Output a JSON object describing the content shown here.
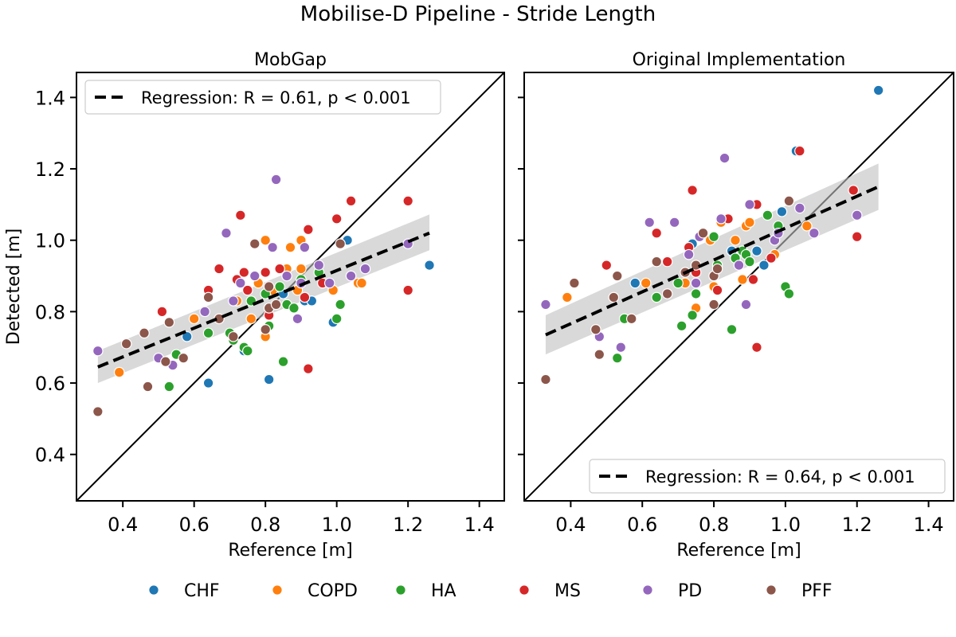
{
  "suptitle": "Mobilise-D Pipeline - Stride Length",
  "colors": {
    "CHF": "#1f77b4",
    "COPD": "#ff7f0e",
    "HA": "#2ca02c",
    "MS": "#d62728",
    "PD": "#9467bd",
    "PFF": "#8c564b",
    "regression": "#000000",
    "ci_band": "#bfbfbf"
  },
  "legend": {
    "items": [
      "CHF",
      "COPD",
      "HA",
      "MS",
      "PD",
      "PFF"
    ]
  },
  "chart_data": [
    {
      "type": "scatter",
      "title": "MobGap",
      "xlabel": "Reference [m]",
      "ylabel": "Detected [m]",
      "xlim": [
        0.27,
        1.47
      ],
      "ylim": [
        0.27,
        1.47
      ],
      "xticks": [
        0.4,
        0.6,
        0.8,
        1.0,
        1.2,
        1.4
      ],
      "yticks": [
        0.4,
        0.6,
        0.8,
        1.0,
        1.2,
        1.4
      ],
      "xtick_labels": [
        "0.4",
        "0.6",
        "0.8",
        "1.0",
        "1.2",
        "1.4"
      ],
      "ytick_labels": [
        "0.4",
        "0.6",
        "0.8",
        "1.0",
        "1.2",
        "1.4"
      ],
      "identity_line": true,
      "regression": {
        "label": "Regression: R = 0.61, p < 0.001",
        "x": [
          0.33,
          1.26
        ],
        "y": [
          0.645,
          1.02
        ],
        "ci_lower": [
          0.6,
          0.972
        ],
        "ci_upper": [
          0.69,
          1.072
        ]
      },
      "legend_position": "upper-left",
      "series": [
        {
          "name": "CHF",
          "x": [
            0.58,
            0.64,
            0.74,
            0.81,
            0.85,
            0.91,
            0.93,
            0.99,
            1.03,
            1.26
          ],
          "y": [
            0.73,
            0.6,
            0.69,
            0.61,
            0.85,
            0.83,
            0.83,
            0.77,
            1.0,
            0.93
          ]
        },
        {
          "name": "COPD",
          "x": [
            0.39,
            0.6,
            0.72,
            0.75,
            0.76,
            0.78,
            0.8,
            0.8,
            0.82,
            0.86,
            0.87,
            0.89,
            0.9,
            0.9,
            0.99,
            1.06,
            1.07
          ],
          "y": [
            0.63,
            0.78,
            0.83,
            0.69,
            0.78,
            0.88,
            0.73,
            1.0,
            0.86,
            0.92,
            0.98,
            0.86,
            0.92,
            1.0,
            0.86,
            0.88,
            0.88
          ]
        },
        {
          "name": "HA",
          "x": [
            0.53,
            0.55,
            0.64,
            0.7,
            0.71,
            0.74,
            0.75,
            0.76,
            0.8,
            0.81,
            0.84,
            0.85,
            0.86,
            0.88,
            0.9,
            0.95,
            1.0,
            1.01
          ],
          "y": [
            0.59,
            0.68,
            0.74,
            0.74,
            0.72,
            0.7,
            0.69,
            0.83,
            0.85,
            0.76,
            0.87,
            0.66,
            0.82,
            0.81,
            0.89,
            0.91,
            0.78,
            0.82
          ]
        },
        {
          "name": "MS",
          "x": [
            0.51,
            0.64,
            0.67,
            0.72,
            0.73,
            0.74,
            0.75,
            0.8,
            0.81,
            0.84,
            0.91,
            0.92,
            0.92,
            0.96,
            1.0,
            1.04,
            1.2,
            1.2
          ],
          "y": [
            0.8,
            0.86,
            0.92,
            0.89,
            1.07,
            0.91,
            0.86,
            0.91,
            0.79,
            0.92,
            0.84,
            0.64,
            1.03,
            0.88,
            1.06,
            1.11,
            1.11,
            0.86
          ]
        },
        {
          "name": "PD",
          "x": [
            0.33,
            0.5,
            0.54,
            0.63,
            0.69,
            0.71,
            0.73,
            0.77,
            0.82,
            0.83,
            0.86,
            0.89,
            0.9,
            0.91,
            0.95,
            0.98,
            1.04,
            1.08,
            1.2
          ],
          "y": [
            0.69,
            0.67,
            0.65,
            0.8,
            1.02,
            0.83,
            0.88,
            0.9,
            0.98,
            1.17,
            0.9,
            0.78,
            0.88,
            0.98,
            0.93,
            0.88,
            0.9,
            0.92,
            0.99
          ]
        },
        {
          "name": "PFF",
          "x": [
            0.33,
            0.41,
            0.46,
            0.47,
            0.52,
            0.53,
            0.57,
            0.64,
            0.67,
            0.71,
            0.77,
            0.8,
            0.81,
            0.81,
            0.83,
            1.01
          ],
          "y": [
            0.52,
            0.71,
            0.74,
            0.59,
            0.66,
            0.77,
            0.67,
            0.84,
            0.78,
            0.73,
            0.99,
            0.75,
            0.81,
            0.87,
            0.82,
            0.99
          ]
        }
      ]
    },
    {
      "type": "scatter",
      "title": "Original Implementation",
      "xlabel": "Reference [m]",
      "ylabel": "",
      "xlim": [
        0.27,
        1.47
      ],
      "ylim": [
        0.27,
        1.47
      ],
      "xticks": [
        0.4,
        0.6,
        0.8,
        1.0,
        1.2,
        1.4
      ],
      "yticks": [
        0.4,
        0.6,
        0.8,
        1.0,
        1.2,
        1.4
      ],
      "xtick_labels": [
        "0.4",
        "0.6",
        "0.8",
        "1.0",
        "1.2",
        "1.4"
      ],
      "ytick_labels": [],
      "identity_line": true,
      "regression": {
        "label": "Regression: R = 0.64, p < 0.001",
        "x": [
          0.33,
          1.26
        ],
        "y": [
          0.735,
          1.15
        ],
        "ci_lower": [
          0.68,
          1.085
        ],
        "ci_upper": [
          0.79,
          1.215
        ]
      },
      "legend_position": "lower-right",
      "series": [
        {
          "name": "CHF",
          "x": [
            0.58,
            0.64,
            0.74,
            0.85,
            0.92,
            0.94,
            0.99,
            1.03,
            1.26
          ],
          "y": [
            0.88,
            0.94,
            0.99,
            0.97,
            0.97,
            0.93,
            1.08,
            1.25,
            1.42
          ]
        },
        {
          "name": "COPD",
          "x": [
            0.39,
            0.61,
            0.72,
            0.75,
            0.79,
            0.8,
            0.82,
            0.86,
            0.88,
            0.89,
            0.9,
            0.97,
            1.06
          ],
          "y": [
            0.84,
            0.88,
            0.88,
            0.81,
            1.0,
            0.87,
            1.05,
            1.0,
            0.89,
            1.04,
            1.05,
            0.96,
            1.04
          ]
        },
        {
          "name": "HA",
          "x": [
            0.53,
            0.55,
            0.64,
            0.7,
            0.71,
            0.74,
            0.75,
            0.8,
            0.81,
            0.85,
            0.86,
            0.88,
            0.89,
            0.9,
            0.95,
            0.98,
            1.0,
            1.01
          ],
          "y": [
            0.67,
            0.78,
            0.84,
            0.88,
            0.76,
            0.79,
            0.85,
            1.01,
            0.93,
            0.75,
            0.95,
            0.97,
            0.96,
            0.94,
            1.07,
            1.04,
            0.87,
            0.85
          ]
        },
        {
          "name": "MS",
          "x": [
            0.5,
            0.64,
            0.67,
            0.73,
            0.74,
            0.75,
            0.81,
            0.84,
            0.91,
            0.92,
            0.92,
            0.96,
            1.04,
            1.19,
            1.2
          ],
          "y": [
            0.93,
            1.02,
            0.94,
            0.98,
            1.14,
            0.91,
            0.86,
            1.06,
            0.89,
            0.7,
            1.1,
            0.95,
            1.25,
            1.14,
            1.01
          ]
        },
        {
          "name": "PD",
          "x": [
            0.33,
            0.48,
            0.54,
            0.62,
            0.69,
            0.73,
            0.75,
            0.76,
            0.82,
            0.83,
            0.87,
            0.89,
            0.9,
            0.97,
            0.98,
            1.04,
            1.08,
            1.2
          ],
          "y": [
            0.82,
            0.73,
            0.7,
            1.05,
            1.05,
            0.96,
            0.88,
            1.01,
            1.06,
            1.23,
            0.93,
            0.82,
            1.1,
            1.0,
            1.02,
            1.09,
            1.02,
            1.07
          ]
        },
        {
          "name": "PFF",
          "x": [
            0.33,
            0.41,
            0.47,
            0.48,
            0.52,
            0.53,
            0.57,
            0.64,
            0.67,
            0.72,
            0.75,
            0.77,
            0.8,
            0.8,
            0.81,
            1.01
          ],
          "y": [
            0.61,
            0.88,
            0.75,
            0.68,
            0.84,
            0.9,
            0.78,
            0.94,
            0.85,
            0.91,
            0.93,
            1.02,
            0.82,
            0.9,
            0.92,
            1.11
          ]
        }
      ]
    }
  ]
}
